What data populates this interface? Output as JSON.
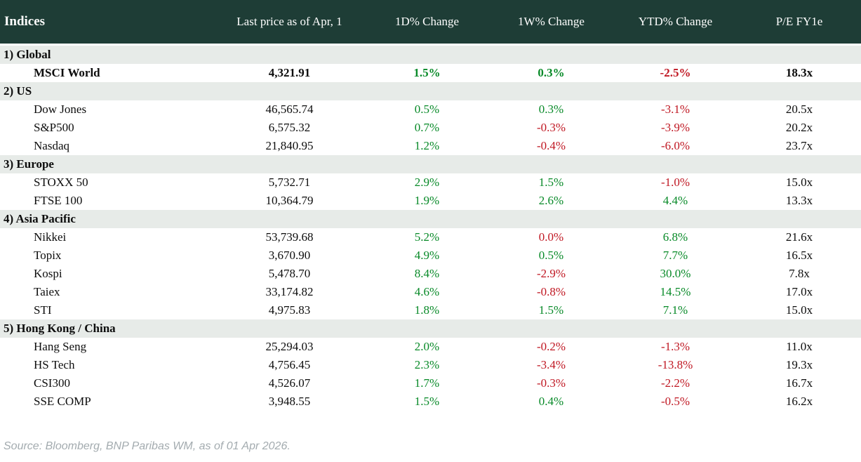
{
  "chart_data": {
    "type": "table",
    "title": "Indices",
    "columns": [
      "Indices",
      "Last price as of Apr, 1",
      "1D% Change",
      "1W% Change",
      "YTD% Change",
      "P/E FY1e"
    ],
    "sections": [
      {
        "label": "1) Global",
        "rows": [
          {
            "name": "MSCI World",
            "bold": true,
            "price": "4,321.91",
            "changes": [
              {
                "v": "1.5%",
                "c": "pos"
              },
              {
                "v": "0.3%",
                "c": "pos"
              },
              {
                "v": "-2.5%",
                "c": "neg"
              }
            ],
            "pe": "18.3x"
          }
        ]
      },
      {
        "label": "2) US",
        "rows": [
          {
            "name": "Dow Jones",
            "price": "46,565.74",
            "changes": [
              {
                "v": "0.5%",
                "c": "pos"
              },
              {
                "v": "0.3%",
                "c": "pos"
              },
              {
                "v": "-3.1%",
                "c": "neg"
              }
            ],
            "pe": "20.5x"
          },
          {
            "name": "S&P500",
            "price": "6,575.32",
            "changes": [
              {
                "v": "0.7%",
                "c": "pos"
              },
              {
                "v": "-0.3%",
                "c": "neg"
              },
              {
                "v": "-3.9%",
                "c": "neg"
              }
            ],
            "pe": "20.2x"
          },
          {
            "name": "Nasdaq",
            "price": "21,840.95",
            "changes": [
              {
                "v": "1.2%",
                "c": "pos"
              },
              {
                "v": "-0.4%",
                "c": "neg"
              },
              {
                "v": "-6.0%",
                "c": "neg"
              }
            ],
            "pe": "23.7x"
          }
        ]
      },
      {
        "label": "3) Europe",
        "rows": [
          {
            "name": "STOXX 50",
            "price": "5,732.71",
            "changes": [
              {
                "v": "2.9%",
                "c": "pos"
              },
              {
                "v": "1.5%",
                "c": "pos"
              },
              {
                "v": "-1.0%",
                "c": "neg"
              }
            ],
            "pe": "15.0x"
          },
          {
            "name": "FTSE 100",
            "price": "10,364.79",
            "changes": [
              {
                "v": "1.9%",
                "c": "pos"
              },
              {
                "v": "2.6%",
                "c": "pos"
              },
              {
                "v": "4.4%",
                "c": "pos"
              }
            ],
            "pe": "13.3x"
          }
        ]
      },
      {
        "label": "4) Asia Pacific",
        "rows": [
          {
            "name": "Nikkei",
            "price": "53,739.68",
            "changes": [
              {
                "v": "5.2%",
                "c": "pos"
              },
              {
                "v": "0.0%",
                "c": "neg"
              },
              {
                "v": "6.8%",
                "c": "pos"
              }
            ],
            "pe": "21.6x"
          },
          {
            "name": "Topix",
            "price": "3,670.90",
            "changes": [
              {
                "v": "4.9%",
                "c": "pos"
              },
              {
                "v": "0.5%",
                "c": "pos"
              },
              {
                "v": "7.7%",
                "c": "pos"
              }
            ],
            "pe": "16.5x"
          },
          {
            "name": "Kospi",
            "price": "5,478.70",
            "changes": [
              {
                "v": "8.4%",
                "c": "pos"
              },
              {
                "v": "-2.9%",
                "c": "neg"
              },
              {
                "v": "30.0%",
                "c": "pos"
              }
            ],
            "pe": "7.8x"
          },
          {
            "name": "Taiex",
            "price": "33,174.82",
            "changes": [
              {
                "v": "4.6%",
                "c": "pos"
              },
              {
                "v": "-0.8%",
                "c": "neg"
              },
              {
                "v": "14.5%",
                "c": "pos"
              }
            ],
            "pe": "17.0x"
          },
          {
            "name": "STI",
            "price": "4,975.83",
            "changes": [
              {
                "v": "1.8%",
                "c": "pos"
              },
              {
                "v": "1.5%",
                "c": "pos"
              },
              {
                "v": "7.1%",
                "c": "pos"
              }
            ],
            "pe": "15.0x"
          }
        ]
      },
      {
        "label": "5) Hong Kong / China",
        "rows": [
          {
            "name": "Hang Seng",
            "price": "25,294.03",
            "changes": [
              {
                "v": "2.0%",
                "c": "pos"
              },
              {
                "v": "-0.2%",
                "c": "neg"
              },
              {
                "v": "-1.3%",
                "c": "neg"
              }
            ],
            "pe": "11.0x"
          },
          {
            "name": "HS Tech",
            "price": "4,756.45",
            "changes": [
              {
                "v": "2.3%",
                "c": "pos"
              },
              {
                "v": "-3.4%",
                "c": "neg"
              },
              {
                "v": "-13.8%",
                "c": "neg"
              }
            ],
            "pe": "19.3x"
          },
          {
            "name": "CSI300",
            "price": "4,526.07",
            "changes": [
              {
                "v": "1.7%",
                "c": "pos"
              },
              {
                "v": "-0.3%",
                "c": "neg"
              },
              {
                "v": "-2.2%",
                "c": "neg"
              }
            ],
            "pe": "16.7x"
          },
          {
            "name": "SSE COMP",
            "price": "3,948.55",
            "changes": [
              {
                "v": "1.5%",
                "c": "pos"
              },
              {
                "v": "0.4%",
                "c": "pos"
              },
              {
                "v": "-0.5%",
                "c": "neg"
              }
            ],
            "pe": "16.2x"
          }
        ]
      }
    ]
  },
  "footer": {
    "source": "Source: Bloomberg, BNP Paribas WM, as of 01 Apr 2026."
  },
  "colors": {
    "header_bg": "#1e3d36",
    "section_bg": "#e7ebe8",
    "positive": "#088a28",
    "negative": "#c01823",
    "source_text": "#a3abaf"
  }
}
